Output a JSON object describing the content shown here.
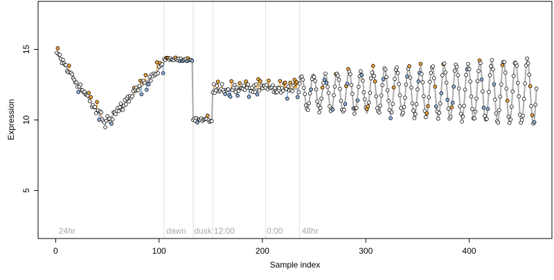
{
  "chart_data": {
    "type": "scatter",
    "title": "",
    "xlabel": "Sample index",
    "ylabel": "Expression",
    "xlim": [
      -17,
      480
    ],
    "ylim": [
      1.6,
      18.4
    ],
    "x_ticks": [
      0,
      100,
      200,
      300,
      400
    ],
    "y_ticks": [
      5,
      10,
      15
    ],
    "grid": false,
    "legend": "none",
    "colors": {
      "point_fill_default": "#ffffff",
      "point_fill_high": "#f4a93a",
      "point_fill_low": "#8fb3e6",
      "point_stroke": "#000000",
      "fit_line": "#aaaaaa",
      "phase_line": "#e0e0e0",
      "phase_text": "#a8a8a8",
      "residual_high": "#f4a93a",
      "residual_low": "#8fb3e6"
    },
    "phase_lines": [
      105,
      133,
      152,
      203,
      236
    ],
    "phase_labels": [
      {
        "x": 3,
        "text": "24hr"
      },
      {
        "x": 107,
        "text": "dawn"
      },
      {
        "x": 134,
        "text": "dusk"
      },
      {
        "x": 153,
        "text": "12:00"
      },
      {
        "x": 204,
        "text": "0:00"
      },
      {
        "x": 238,
        "text": "48hr"
      }
    ],
    "segments": [
      {
        "name": "24hr",
        "x_start": 1,
        "x_end": 104,
        "shape": "V",
        "anchors": [
          [
            1,
            14.7
          ],
          [
            48,
            9.8
          ],
          [
            104,
            13.9
          ]
        ],
        "noise": 0.5
      },
      {
        "name": "dawn",
        "x_start": 105,
        "x_end": 132,
        "shape": "flat",
        "level": 14.3,
        "noise": 0.1
      },
      {
        "name": "dusk",
        "x_start": 133,
        "x_end": 151,
        "shape": "flat",
        "level": 10.0,
        "noise": 0.2
      },
      {
        "name": "12:00",
        "x_start": 152,
        "x_end": 202,
        "shape": "flat",
        "level": 12.2,
        "noise": 0.5
      },
      {
        "name": "0:00",
        "x_start": 203,
        "x_end": 235,
        "shape": "flat",
        "level": 12.2,
        "noise": 0.5
      },
      {
        "name": "48hr",
        "x_start": 236,
        "x_end": 465,
        "shape": "oscillation",
        "level": 12.0,
        "amplitude_start": 1.2,
        "amplitude_end": 2.3,
        "period": 11.5,
        "noise": 0.25
      }
    ]
  }
}
